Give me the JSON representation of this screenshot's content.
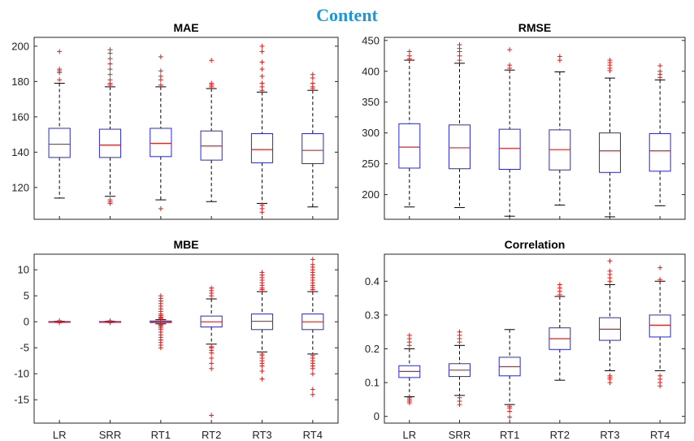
{
  "title": "Content",
  "chart_data": [
    {
      "type": "box",
      "title": "MAE",
      "categories": [
        "LR",
        "SRR",
        "RT1",
        "RT2",
        "RT3",
        "RT4"
      ],
      "ylim": [
        102,
        205
      ],
      "yticks": [
        120,
        140,
        160,
        180,
        200
      ],
      "show_xticks": false,
      "boxes": [
        {
          "whisker_low": 114,
          "q1": 137,
          "median": 144.5,
          "q3": 153.5,
          "whisker_high": 179,
          "outliers": [
            181,
            185,
            186,
            187,
            197
          ]
        },
        {
          "whisker_low": 115,
          "q1": 137,
          "median": 144,
          "q3": 153,
          "whisker_high": 177,
          "outliers": [
            111,
            112,
            113,
            178,
            179,
            181,
            184,
            187,
            190,
            193,
            196,
            198
          ]
        },
        {
          "whisker_low": 113,
          "q1": 137.5,
          "median": 145,
          "q3": 153.5,
          "whisker_high": 177,
          "outliers": [
            108,
            178,
            181,
            183,
            186,
            194
          ]
        },
        {
          "whisker_low": 112,
          "q1": 135.5,
          "median": 143.5,
          "q3": 152,
          "whisker_high": 176,
          "outliers": [
            177,
            178,
            179,
            192
          ]
        },
        {
          "whisker_low": 111,
          "q1": 134,
          "median": 141.5,
          "q3": 150.5,
          "whisker_high": 174,
          "outliers": [
            106,
            108,
            110,
            175,
            177,
            179,
            183,
            187,
            191,
            197,
            200
          ]
        },
        {
          "whisker_low": 109,
          "q1": 133.5,
          "median": 141,
          "q3": 150.5,
          "whisker_high": 175,
          "outliers": [
            176,
            177,
            179,
            182,
            184
          ]
        }
      ]
    },
    {
      "type": "box",
      "title": "RMSE",
      "categories": [
        "LR",
        "SRR",
        "RT1",
        "RT2",
        "RT3",
        "RT4"
      ],
      "ylim": [
        160,
        455
      ],
      "yticks": [
        200,
        250,
        300,
        350,
        400,
        450
      ],
      "show_xticks": false,
      "boxes": [
        {
          "whisker_low": 180,
          "q1": 243,
          "median": 277,
          "q3": 315,
          "whisker_high": 418,
          "outliers": [
            420,
            425,
            432
          ]
        },
        {
          "whisker_low": 179,
          "q1": 242,
          "median": 276,
          "q3": 313,
          "whisker_high": 413,
          "outliers": [
            418,
            425,
            432,
            437,
            443
          ]
        },
        {
          "whisker_low": 165,
          "q1": 241,
          "median": 275,
          "q3": 306,
          "whisker_high": 402,
          "outliers": [
            405,
            410,
            435
          ]
        },
        {
          "whisker_low": 183,
          "q1": 240,
          "median": 273,
          "q3": 305,
          "whisker_high": 399,
          "outliers": [
            418,
            424
          ]
        },
        {
          "whisker_low": 164,
          "q1": 236,
          "median": 271,
          "q3": 300,
          "whisker_high": 389,
          "outliers": [
            401,
            405,
            410,
            414,
            418
          ]
        },
        {
          "whisker_low": 182,
          "q1": 238,
          "median": 271,
          "q3": 299,
          "whisker_high": 386,
          "outliers": [
            390,
            395,
            400,
            409
          ]
        }
      ]
    },
    {
      "type": "box",
      "title": "MBE",
      "categories": [
        "LR",
        "SRR",
        "RT1",
        "RT2",
        "RT3",
        "RT4"
      ],
      "ylim": [
        -19.5,
        13
      ],
      "yticks": [
        -15,
        -10,
        -5,
        0,
        5,
        10
      ],
      "show_xticks": true,
      "boxes": [
        {
          "whisker_low": -0.1,
          "q1": -0.05,
          "median": 0,
          "q3": 0.05,
          "whisker_high": 0.1,
          "outliers": [
            -0.2,
            0.2
          ]
        },
        {
          "whisker_low": -0.1,
          "q1": -0.05,
          "median": 0,
          "q3": 0.05,
          "whisker_high": 0.1,
          "outliers": [
            -0.2,
            0.2
          ]
        },
        {
          "whisker_low": -0.4,
          "q1": -0.15,
          "median": 0,
          "q3": 0.15,
          "whisker_high": 0.4,
          "outliers": [
            -5,
            -4.5,
            -4,
            -3.5,
            -3,
            -2.5,
            -2,
            -1.5,
            -1.2,
            -0.9,
            -0.7,
            -0.5,
            0.5,
            0.7,
            0.9,
            1.2,
            1.5,
            2,
            2.5,
            3,
            3.5,
            4,
            4.5,
            5
          ]
        },
        {
          "whisker_low": -4.3,
          "q1": -1.0,
          "median": 0,
          "q3": 1.1,
          "whisker_high": 4.4,
          "outliers": [
            -18,
            -9,
            -8,
            -7,
            -6,
            -5.5,
            -5,
            -4.8,
            5,
            5.5,
            6,
            6.5
          ]
        },
        {
          "whisker_low": -5.8,
          "q1": -1.5,
          "median": 0.1,
          "q3": 1.5,
          "whisker_high": 5.8,
          "outliers": [
            -11,
            -9.5,
            -8.5,
            -8,
            -7.5,
            -7,
            -6.5,
            -6.2,
            6.2,
            6.5,
            7,
            7.5,
            8,
            8.5,
            9,
            9.5
          ]
        },
        {
          "whisker_low": -6.2,
          "q1": -1.5,
          "median": 0,
          "q3": 1.5,
          "whisker_high": 5.8,
          "outliers": [
            -14,
            -13,
            -10,
            -9,
            -8.5,
            -8,
            -7.5,
            -7,
            -6.5,
            6.2,
            6.6,
            7,
            7.5,
            8,
            8.5,
            9,
            9.5,
            10,
            10.5,
            11,
            12
          ]
        }
      ]
    },
    {
      "type": "box",
      "title": "Correlation",
      "categories": [
        "LR",
        "SRR",
        "RT1",
        "RT2",
        "RT3",
        "RT4"
      ],
      "ylim": [
        -0.02,
        0.48
      ],
      "yticks": [
        0,
        0.1,
        0.2,
        0.3,
        0.4
      ],
      "show_xticks": true,
      "boxes": [
        {
          "whisker_low": 0.058,
          "q1": 0.115,
          "median": 0.133,
          "q3": 0.15,
          "whisker_high": 0.2,
          "outliers": [
            0.04,
            0.045,
            0.05,
            0.055,
            0.21,
            0.22,
            0.23,
            0.24
          ]
        },
        {
          "whisker_low": 0.062,
          "q1": 0.118,
          "median": 0.137,
          "q3": 0.156,
          "whisker_high": 0.21,
          "outliers": [
            0.035,
            0.045,
            0.055,
            0.22,
            0.23,
            0.24,
            0.25
          ]
        },
        {
          "whisker_low": 0.035,
          "q1": 0.12,
          "median": 0.147,
          "q3": 0.175,
          "whisker_high": 0.257,
          "outliers": [
            -0.002,
            0.015,
            0.025,
            0.03
          ]
        },
        {
          "whisker_low": 0.107,
          "q1": 0.198,
          "median": 0.23,
          "q3": 0.262,
          "whisker_high": 0.355,
          "outliers": [
            0.36,
            0.37,
            0.38,
            0.39
          ]
        },
        {
          "whisker_low": 0.135,
          "q1": 0.225,
          "median": 0.258,
          "q3": 0.292,
          "whisker_high": 0.39,
          "outliers": [
            0.1,
            0.11,
            0.115,
            0.12,
            0.4,
            0.41,
            0.42,
            0.43,
            0.46
          ]
        },
        {
          "whisker_low": 0.135,
          "q1": 0.235,
          "median": 0.27,
          "q3": 0.3,
          "whisker_high": 0.4,
          "outliers": [
            0.09,
            0.1,
            0.11,
            0.12,
            0.405,
            0.44
          ]
        }
      ]
    }
  ]
}
